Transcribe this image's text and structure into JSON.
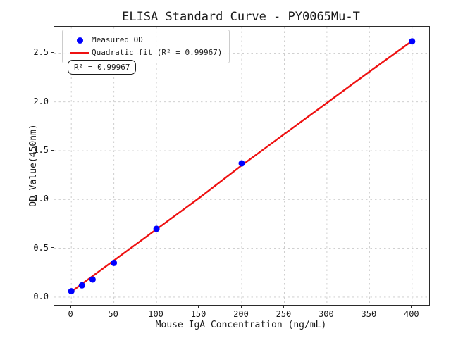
{
  "figure": {
    "background": "#ffffff",
    "spine_color": "#2b2b2b",
    "grid_color": "#c9c9c9"
  },
  "legend": {
    "position": "upper left",
    "items": [
      {
        "label": "Measured OD",
        "marker": "circle",
        "color": "#0000ff"
      },
      {
        "label": "Quadratic fit (R² = 0.99967)",
        "marker": "line",
        "color": "#ee1111"
      }
    ]
  },
  "annotation": {
    "text": "R² = 0.99967"
  },
  "chart_data": {
    "type": "scatter",
    "title": "ELISA Standard Curve - PY0065Mu-T",
    "xlabel": "Mouse IgA Concentration (ng/mL)",
    "ylabel": "OD Value(450nm)",
    "xlim": [
      -20,
      420
    ],
    "ylim": [
      -0.08,
      2.77
    ],
    "xticks": [
      0,
      50,
      100,
      150,
      200,
      250,
      300,
      350,
      400
    ],
    "yticks": [
      0.0,
      0.5,
      1.0,
      1.5,
      2.0,
      2.5
    ],
    "grid": true,
    "grid_style": "dashed",
    "r_squared": 0.99967,
    "series": [
      {
        "name": "Measured OD",
        "kind": "scatter",
        "color": "#0000ff",
        "x": [
          0,
          12.5,
          25,
          50,
          100,
          200,
          400
        ],
        "y": [
          0.06,
          0.12,
          0.18,
          0.35,
          0.7,
          1.37,
          2.62
        ]
      },
      {
        "name": "Quadratic fit (R² = 0.99967)",
        "kind": "line",
        "color": "#ee1111",
        "x": [
          0,
          50,
          100,
          150,
          200,
          250,
          300,
          350,
          400
        ],
        "y": [
          0.055,
          0.375,
          0.695,
          1.015,
          1.35,
          1.67,
          1.99,
          2.31,
          2.625
        ]
      }
    ]
  }
}
